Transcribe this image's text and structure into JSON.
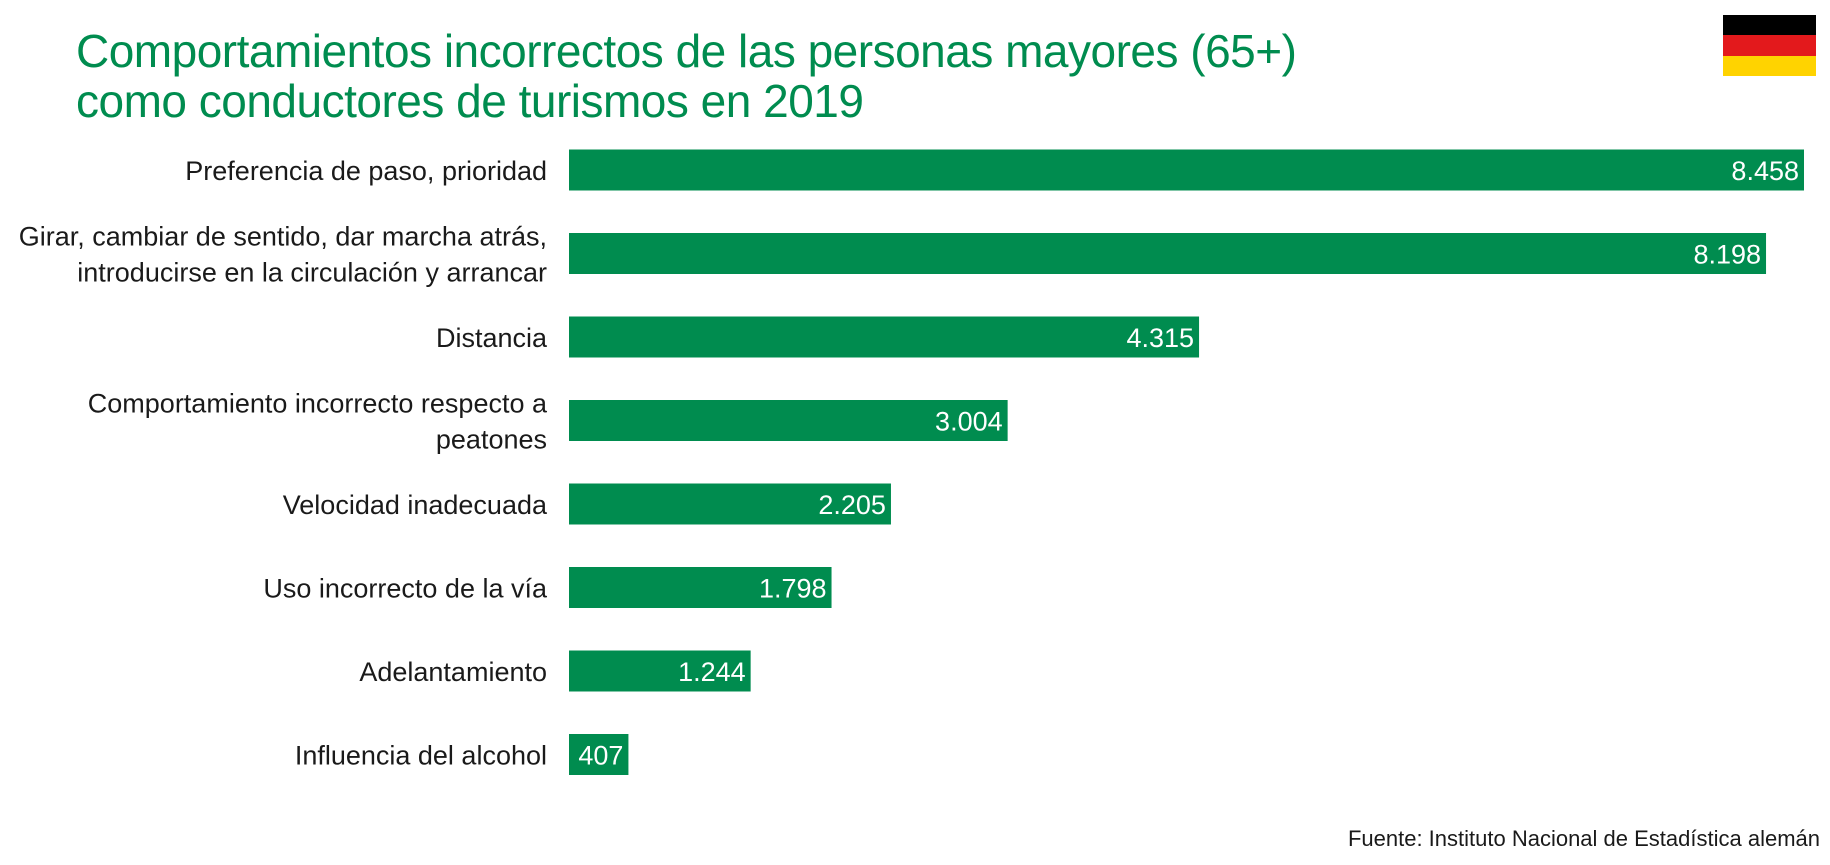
{
  "title_lines": [
    "Comportamientos incorrectos de las personas mayores (65+)",
    "como conductores de turismos en 2019"
  ],
  "source": "Fuente: Instituto Nacional de Estadística alemán",
  "flag_colors": [
    "#000000",
    "#e3191c",
    "#ffd300"
  ],
  "colors": {
    "bar": "#008c4f",
    "title": "#008c4f",
    "value_text": "#ffffff"
  },
  "chart_data": {
    "type": "bar",
    "orientation": "horizontal",
    "title": "Comportamientos incorrectos de las personas mayores (65+) como conductores de turismos en 2019",
    "categories": [
      [
        "Preferencia de paso, prioridad"
      ],
      [
        "Girar, cambiar de sentido, dar marcha atrás,",
        "introducirse en la circulación y arrancar"
      ],
      [
        "Distancia"
      ],
      [
        "Comportamiento incorrecto respecto a",
        "peatones"
      ],
      [
        "Velocidad inadecuada"
      ],
      [
        "Uso incorrecto de la vía"
      ],
      [
        "Adelantamiento"
      ],
      [
        "Influencia del alcohol"
      ]
    ],
    "values": [
      8458,
      8198,
      4315,
      3004,
      2205,
      1798,
      1244,
      407
    ],
    "value_labels": [
      "8.458",
      "8.198",
      "4.315",
      "3.004",
      "2.205",
      "1.798",
      "1.244",
      "407"
    ],
    "xlabel": "",
    "ylabel": "",
    "xlim": [
      0,
      8458
    ],
    "grid": false,
    "legend": "none"
  }
}
